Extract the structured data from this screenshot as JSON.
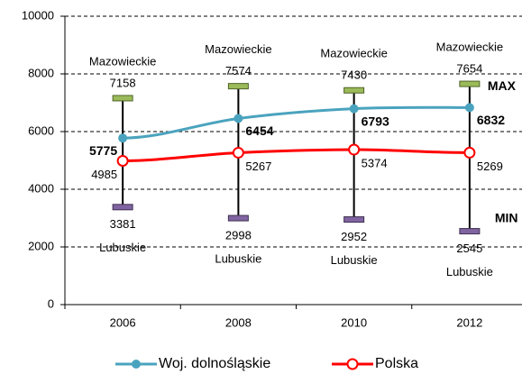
{
  "chart_data": {
    "type": "line",
    "categories": [
      "2006",
      "2008",
      "2010",
      "2012"
    ],
    "series": [
      {
        "name": "Woj. dolnośląskie",
        "color": "#4aa3be",
        "values": [
          5775,
          6454,
          6793,
          6832
        ]
      },
      {
        "name": "Polska",
        "color": "#ff0000",
        "values": [
          4985,
          5267,
          5374,
          5269
        ]
      }
    ],
    "range": {
      "max": {
        "name": "MAX",
        "color": "#9bbb59",
        "values": [
          7158,
          7574,
          7430,
          7654
        ],
        "regions": [
          "Mazowieckie",
          "Mazowieckie",
          "Mazowieckie",
          "Mazowieckie"
        ]
      },
      "min": {
        "name": "MIN",
        "color": "#8064a2",
        "values": [
          3381,
          2998,
          2952,
          2545
        ],
        "regions": [
          "Lubuskie",
          "Lubuskie",
          "Lubuskie",
          "Lubuskie"
        ]
      }
    },
    "ylim": [
      0,
      10000
    ],
    "yticks": [
      0,
      2000,
      4000,
      6000,
      8000,
      10000
    ],
    "grid": true
  }
}
